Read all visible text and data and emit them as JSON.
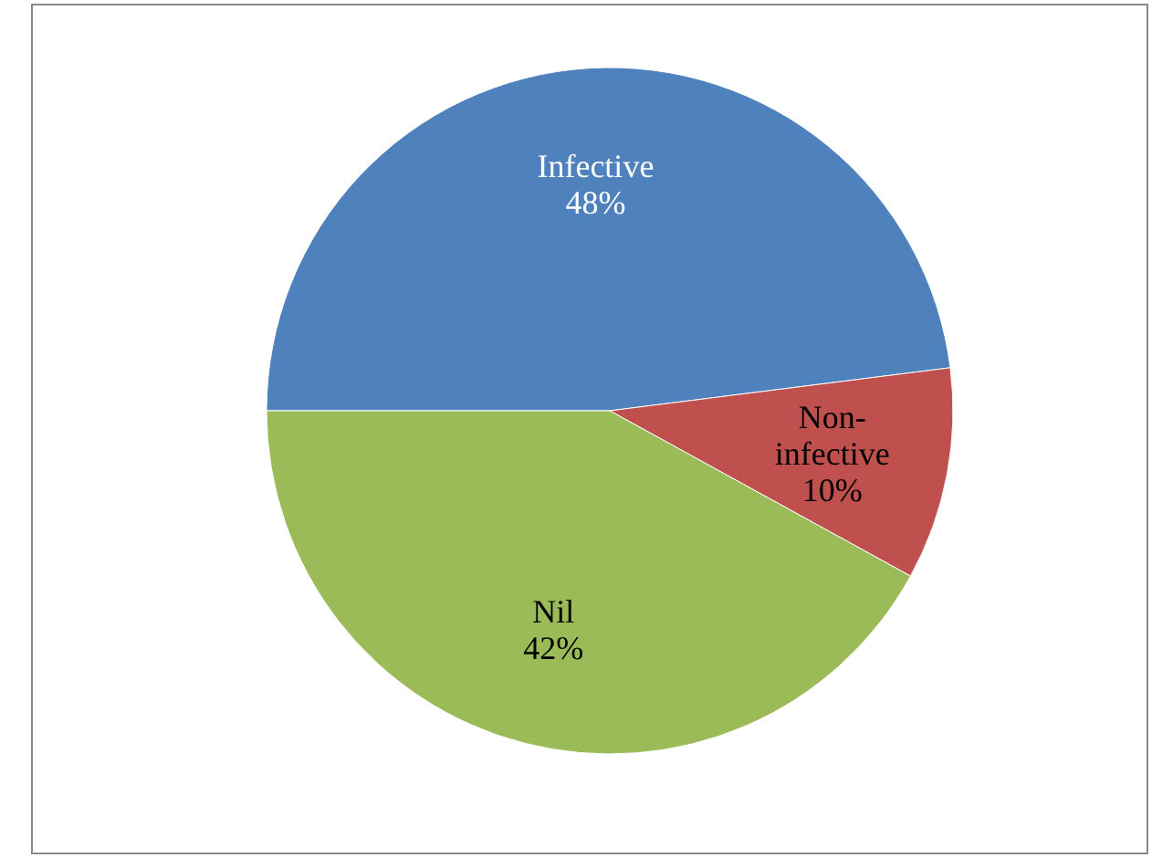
{
  "chart_data": {
    "type": "pie",
    "categories": [
      "Infective",
      "Non-infective",
      "Nil"
    ],
    "values": [
      48,
      10,
      42
    ],
    "colors": [
      "#4f81bd",
      "#c0504d",
      "#9bbb59"
    ],
    "value_labels": [
      "48%",
      "10%",
      "42%"
    ]
  }
}
